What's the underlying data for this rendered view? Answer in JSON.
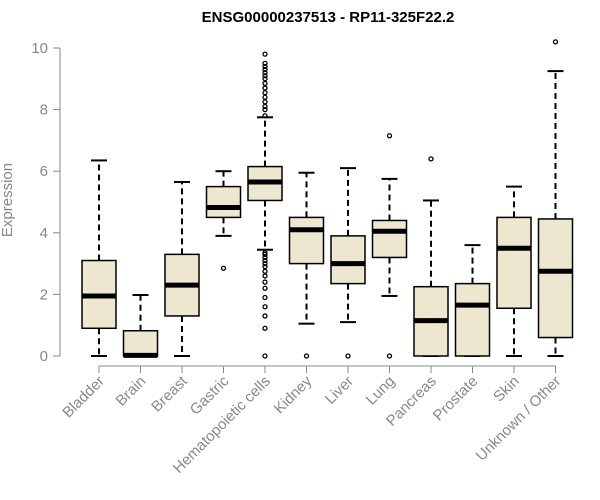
{
  "chart_data": {
    "type": "boxplot",
    "title": "ENSG00000237513 - RP11-325F22.2",
    "xlabel": "",
    "ylabel": "Expression",
    "ylim": [
      0,
      10
    ],
    "yticks": [
      0,
      2,
      4,
      6,
      8,
      10
    ],
    "ytick_labels": [
      "0",
      "2",
      "4",
      "6",
      "8",
      "10"
    ],
    "box_fill": "#ede7cf",
    "categories": [
      "Bladder",
      "Brain",
      "Breast",
      "Gastric",
      "Hematopoietic cells",
      "Kidney",
      "Liver",
      "Lung",
      "Pancreas",
      "Prostate",
      "Skin",
      "Unknown / Other"
    ],
    "boxes": [
      {
        "label": "Bladder",
        "whisker_low": 0.0,
        "q1": 0.9,
        "median": 1.95,
        "q3": 3.1,
        "whisker_high": 6.35,
        "outliers": []
      },
      {
        "label": "Brain",
        "whisker_low": 0.0,
        "q1": 0.0,
        "median": 0.02,
        "q3": 0.82,
        "whisker_high": 1.98,
        "outliers": []
      },
      {
        "label": "Breast",
        "whisker_low": 0.0,
        "q1": 1.3,
        "median": 2.3,
        "q3": 3.3,
        "whisker_high": 5.65,
        "outliers": []
      },
      {
        "label": "Gastric",
        "whisker_low": 3.9,
        "q1": 4.5,
        "median": 4.82,
        "q3": 5.5,
        "whisker_high": 6.0,
        "outliers": [
          2.85
        ]
      },
      {
        "label": "Hematopoietic cells",
        "whisker_low": 3.45,
        "q1": 5.05,
        "median": 5.65,
        "q3": 6.15,
        "whisker_high": 7.75,
        "outliers": [
          0.0,
          0.9,
          1.3,
          1.6,
          1.9,
          2.2,
          2.4,
          2.6,
          2.75,
          2.9,
          3.0,
          3.1,
          3.2,
          3.3,
          3.35,
          7.8,
          8.0,
          8.1,
          8.25,
          8.4,
          8.55,
          8.7,
          8.85,
          9.0,
          9.1,
          9.2,
          9.3,
          9.4,
          9.5,
          9.8
        ]
      },
      {
        "label": "Kidney",
        "whisker_low": 1.05,
        "q1": 3.0,
        "median": 4.1,
        "q3": 4.5,
        "whisker_high": 5.95,
        "outliers": [
          0.0
        ]
      },
      {
        "label": "Liver",
        "whisker_low": 1.1,
        "q1": 2.35,
        "median": 3.0,
        "q3": 3.9,
        "whisker_high": 6.1,
        "outliers": [
          0.0
        ]
      },
      {
        "label": "Lung",
        "whisker_low": 1.95,
        "q1": 3.2,
        "median": 4.05,
        "q3": 4.4,
        "whisker_high": 5.75,
        "outliers": [
          0.0,
          7.15
        ]
      },
      {
        "label": "Pancreas",
        "whisker_low": 0.0,
        "q1": 0.0,
        "median": 1.15,
        "q3": 2.25,
        "whisker_high": 5.05,
        "outliers": [
          6.4
        ]
      },
      {
        "label": "Prostate",
        "whisker_low": 0.0,
        "q1": 0.0,
        "median": 1.65,
        "q3": 2.35,
        "whisker_high": 3.6,
        "outliers": []
      },
      {
        "label": "Skin",
        "whisker_low": 0.0,
        "q1": 1.55,
        "median": 3.5,
        "q3": 4.5,
        "whisker_high": 5.5,
        "outliers": []
      },
      {
        "label": "Unknown / Other",
        "whisker_low": 0.0,
        "q1": 0.6,
        "median": 2.75,
        "q3": 4.45,
        "whisker_high": 9.25,
        "outliers": [
          10.2
        ]
      }
    ]
  }
}
